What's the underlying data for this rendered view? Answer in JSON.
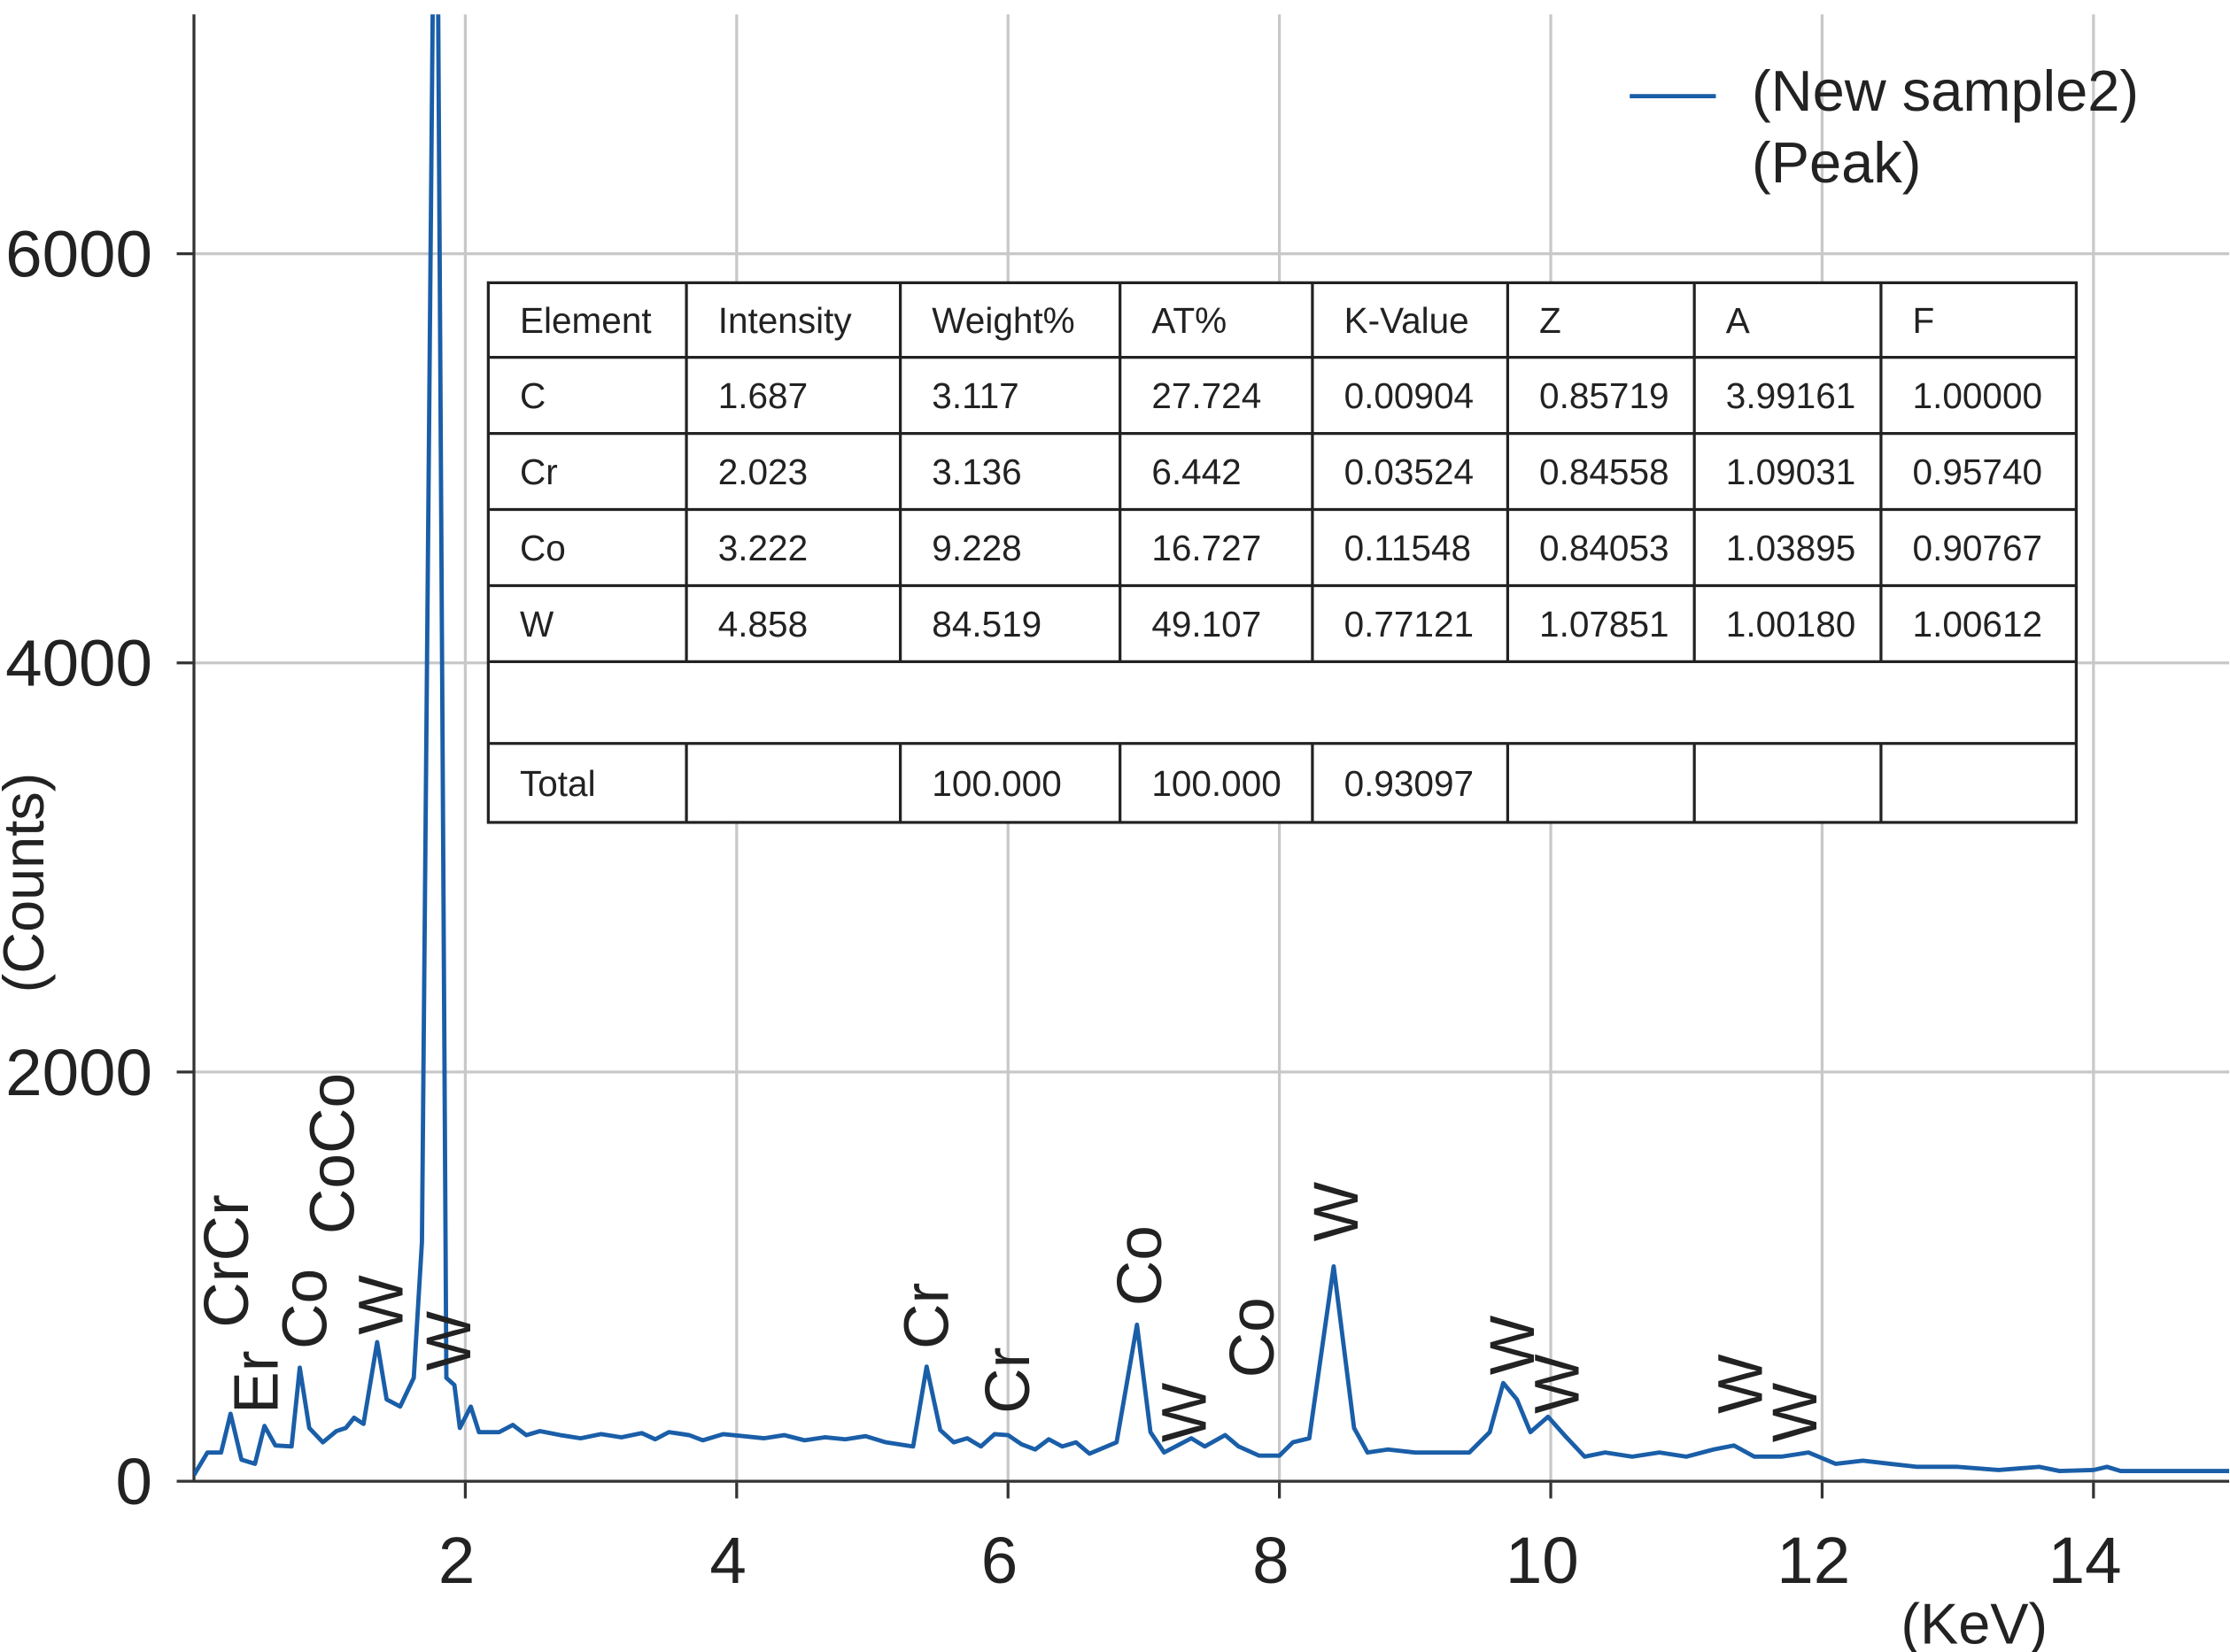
{
  "chart_data": {
    "type": "line",
    "xlabel": "(KeV)",
    "ylabel": "(Counts)",
    "xlim": [
      0,
      15
    ],
    "ylim": [
      0,
      7170
    ],
    "xticks": [
      2,
      4,
      6,
      8,
      10,
      12,
      14
    ],
    "yticks": [
      0,
      2000,
      4000,
      6000
    ],
    "grid": true,
    "x": [
      0.0,
      0.1,
      0.2,
      0.27,
      0.35,
      0.45,
      0.52,
      0.6,
      0.72,
      0.78,
      0.85,
      0.95,
      1.05,
      1.12,
      1.18,
      1.25,
      1.35,
      1.42,
      1.52,
      1.62,
      1.68,
      1.76,
      1.8,
      1.86,
      1.92,
      1.96,
      2.04,
      2.1,
      2.25,
      2.35,
      2.45,
      2.55,
      2.7,
      2.85,
      3.0,
      3.15,
      3.3,
      3.4,
      3.5,
      3.65,
      3.75,
      3.9,
      4.05,
      4.2,
      4.35,
      4.5,
      4.65,
      4.8,
      4.95,
      5.1,
      5.3,
      5.4,
      5.5,
      5.6,
      5.7,
      5.8,
      5.9,
      6.0,
      6.1,
      6.2,
      6.3,
      6.4,
      6.5,
      6.6,
      6.8,
      6.95,
      7.05,
      7.15,
      7.25,
      7.35,
      7.45,
      7.6,
      7.7,
      7.85,
      8.0,
      8.1,
      8.22,
      8.4,
      8.55,
      8.65,
      8.8,
      9.0,
      9.2,
      9.4,
      9.55,
      9.65,
      9.75,
      9.85,
      9.98,
      10.1,
      10.25,
      10.4,
      10.6,
      10.8,
      11.0,
      11.2,
      11.35,
      11.5,
      11.7,
      11.9,
      12.1,
      12.3,
      12.5,
      12.7,
      13.0,
      13.3,
      13.6,
      13.75,
      14.0,
      14.1,
      14.2,
      15.0
    ],
    "series": [
      {
        "name": "(New sample2) (Peak)",
        "color": "#1a5ea8",
        "values": [
          30,
          140,
          140,
          330,
          105,
          85,
          270,
          175,
          170,
          555,
          260,
          190,
          245,
          260,
          310,
          280,
          680,
          400,
          365,
          505,
          1170,
          7200,
          7200,
          505,
          470,
          260,
          365,
          240,
          240,
          275,
          225,
          245,
          225,
          210,
          230,
          215,
          235,
          205,
          240,
          225,
          200,
          230,
          220,
          210,
          225,
          200,
          215,
          205,
          220,
          190,
          170,
          560,
          250,
          190,
          210,
          170,
          230,
          225,
          180,
          155,
          205,
          170,
          190,
          135,
          190,
          765,
          240,
          140,
          175,
          210,
          170,
          225,
          170,
          125,
          125,
          190,
          210,
          1050,
          260,
          140,
          155,
          140,
          140,
          140,
          240,
          480,
          400,
          240,
          315,
          225,
          120,
          140,
          120,
          140,
          120,
          155,
          175,
          120,
          120,
          140,
          85,
          100,
          85,
          70,
          70,
          55,
          70,
          50,
          55,
          70,
          50,
          50
        ]
      }
    ],
    "annotations": [
      {
        "text": "CrCr",
        "x": 0.24,
        "y": 750
      },
      {
        "text": "Er",
        "x": 0.46,
        "y": 330
      },
      {
        "text": "Co",
        "x": 0.82,
        "y": 645
      },
      {
        "text": "CoCo",
        "x": 1.02,
        "y": 1207
      },
      {
        "text": "W",
        "x": 1.38,
        "y": 716
      },
      {
        "text": "W",
        "x": 1.88,
        "y": 540
      },
      {
        "text": "Cr",
        "x": 5.4,
        "y": 645
      },
      {
        "text": "Cr",
        "x": 6.0,
        "y": 330
      },
      {
        "text": "Co",
        "x": 6.97,
        "y": 856
      },
      {
        "text": "W",
        "x": 7.3,
        "y": 190
      },
      {
        "text": "Co",
        "x": 7.8,
        "y": 505
      },
      {
        "text": "W",
        "x": 8.42,
        "y": 1172
      },
      {
        "text": "W",
        "x": 9.72,
        "y": 519
      },
      {
        "text": "W",
        "x": 10.05,
        "y": 330
      },
      {
        "text": "W",
        "x": 11.4,
        "y": 330
      },
      {
        "text": "W",
        "x": 11.8,
        "y": 190
      }
    ]
  },
  "table": {
    "header": [
      "Element",
      "Intensity",
      "Weight%",
      "AT%",
      "K-Value",
      "Z",
      "A",
      "F"
    ],
    "rows": [
      [
        "C",
        "1.687",
        "3.117",
        "27.724",
        "0.00904",
        "0.85719",
        "3.99161",
        "1.00000"
      ],
      [
        "Cr",
        "2.023",
        "3.136",
        "6.442",
        "0.03524",
        "0.84558",
        "1.09031",
        "0.95740"
      ],
      [
        "Co",
        "3.222",
        "9.228",
        "16.727",
        "0.11548",
        "0.84053",
        "1.03895",
        "0.90767"
      ],
      [
        "W",
        "4.858",
        "84.519",
        "49.107",
        "0.77121",
        "1.07851",
        "1.00180",
        "1.00612"
      ]
    ],
    "total": [
      "Total",
      null,
      "100.000",
      "100.000",
      "0.93097",
      null,
      null,
      null
    ]
  }
}
